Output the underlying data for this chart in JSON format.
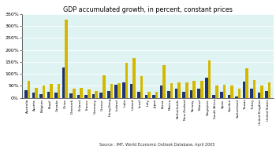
{
  "title": "GDP accumulated growth, in percent, constant prices",
  "categories": [
    "Australia",
    "Austria",
    "Belgium",
    "Brazil",
    "Canada",
    "China",
    "Denmark",
    "Finland",
    "France",
    "Germany",
    "Greece",
    "Hong Kong",
    "Iceland",
    "India",
    "Ireland",
    "Israel",
    "Italy",
    "Japan",
    "Korea",
    "Mexico",
    "Netherlands",
    "New Zealand",
    "Norway",
    "Poland",
    "Singapore",
    "South Africa",
    "Spain",
    "Sweden",
    "Switzerland",
    "Taiwan",
    "Turkey",
    "United Kingdom",
    "United States"
  ],
  "values_1990_1998": [
    32,
    22,
    17,
    26,
    23,
    125,
    18,
    11,
    13,
    17,
    21,
    28,
    55,
    63,
    58,
    27,
    13,
    14,
    51,
    29,
    38,
    27,
    32,
    40,
    85,
    13,
    26,
    13,
    7,
    68,
    38,
    22,
    29
  ],
  "values_1990_2006": [
    70,
    42,
    52,
    58,
    58,
    325,
    40,
    42,
    35,
    30,
    93,
    57,
    60,
    145,
    165,
    92,
    25,
    25,
    137,
    62,
    65,
    65,
    70,
    72,
    155,
    50,
    55,
    50,
    37,
    123,
    73,
    50,
    65
  ],
  "color_1998": "#1e3275",
  "color_2006": "#d4b800",
  "plot_background": "#dff3f3",
  "fig_background": "#ffffff",
  "ylim": [
    0,
    350
  ],
  "yticks": [
    0,
    50,
    100,
    150,
    200,
    250,
    300,
    350
  ],
  "ytick_labels": [
    "0%",
    "50%",
    "100%",
    "150%",
    "200%",
    "250%",
    "300%",
    "350%"
  ],
  "source_text": "Source : IMF, World Economic Outlook Database, April 2005",
  "bar_width": 0.38
}
